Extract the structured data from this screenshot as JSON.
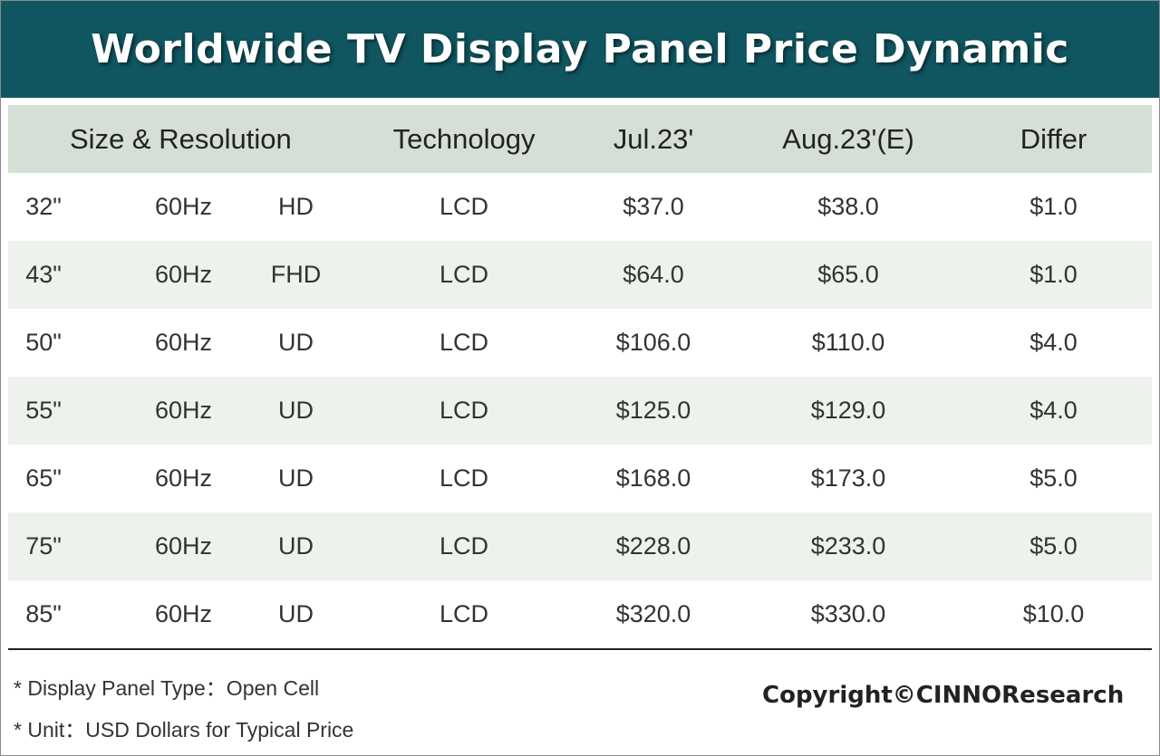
{
  "title": "Worldwide TV Display Panel Price Dynamic",
  "colors": {
    "title_bg": "#105661",
    "header_bg": "#d5dfd5",
    "stripe_bg": "#edf2ed"
  },
  "chart_data": {
    "type": "table",
    "title": "Worldwide TV Display Panel Price Dynamic",
    "columns": [
      "Size & Resolution",
      "Technology",
      "Jul.23'",
      "Aug.23'(E)",
      "Differ"
    ],
    "rows": [
      {
        "size": "32\"",
        "refresh": "60Hz",
        "resolution": "HD",
        "technology": "LCD",
        "jul": "$37.0",
        "aug": "$38.0",
        "differ": "$1.0"
      },
      {
        "size": "43\"",
        "refresh": "60Hz",
        "resolution": "FHD",
        "technology": "LCD",
        "jul": "$64.0",
        "aug": "$65.0",
        "differ": "$1.0"
      },
      {
        "size": "50\"",
        "refresh": "60Hz",
        "resolution": "UD",
        "technology": "LCD",
        "jul": "$106.0",
        "aug": "$110.0",
        "differ": "$4.0"
      },
      {
        "size": "55\"",
        "refresh": "60Hz",
        "resolution": "UD",
        "technology": "LCD",
        "jul": "$125.0",
        "aug": "$129.0",
        "differ": "$4.0"
      },
      {
        "size": "65\"",
        "refresh": "60Hz",
        "resolution": "UD",
        "technology": "LCD",
        "jul": "$168.0",
        "aug": "$173.0",
        "differ": "$5.0"
      },
      {
        "size": "75\"",
        "refresh": "60Hz",
        "resolution": "UD",
        "technology": "LCD",
        "jul": "$228.0",
        "aug": "$233.0",
        "differ": "$5.0"
      },
      {
        "size": "85\"",
        "refresh": "60Hz",
        "resolution": "UD",
        "technology": "LCD",
        "jul": "$320.0",
        "aug": "$330.0",
        "differ": "$10.0"
      }
    ]
  },
  "notes": [
    "* Display Panel Type：Open Cell",
    "* Unit：USD Dollars for Typical Price"
  ],
  "copyright": "Copyright©CINNOResearch"
}
